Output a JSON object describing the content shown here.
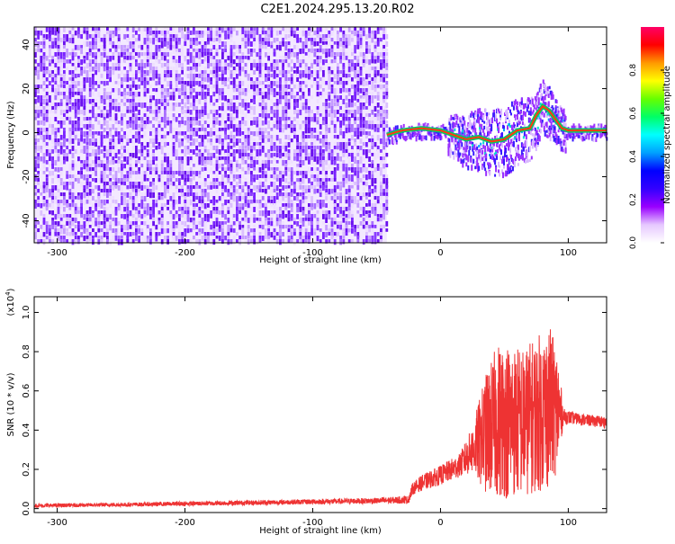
{
  "page_title": "C2E1.2024.295.13.20.R02",
  "chart_data": [
    {
      "type": "heatmap",
      "title": "C2E1.2024.295.13.20.R02",
      "xlabel": "Height of straight line (km)",
      "ylabel": "Frequency (Hz)",
      "xlim": [
        -318,
        130
      ],
      "ylim": [
        -50,
        48
      ],
      "x_ticks": [
        -300,
        -200,
        -100,
        0,
        100
      ],
      "y_ticks": [
        -40,
        -20,
        0,
        20,
        40
      ],
      "x_tick_labels": [
        "-300",
        "-200",
        "-100",
        "0",
        "100"
      ],
      "y_tick_labels": [
        "-40",
        "-20",
        "0",
        "20",
        "40"
      ],
      "noise_region_x": [
        -318,
        -42
      ],
      "ridge": {
        "x": [
          -42,
          -30,
          -15,
          0,
          10,
          20,
          30,
          40,
          50,
          60,
          70,
          75,
          80,
          85,
          90,
          95,
          100,
          130
        ],
        "y": [
          -1,
          1,
          2,
          1,
          -1,
          -3,
          -2,
          -4,
          -3,
          1,
          2,
          8,
          12,
          10,
          6,
          2,
          1,
          1
        ]
      },
      "colorbar": {
        "label": "Normalized spectral amplitude",
        "range": [
          0.0,
          1.0
        ],
        "ticks": [
          0.0,
          0.2,
          0.4,
          0.6,
          0.8
        ],
        "tick_labels": [
          "0.0",
          "0.2",
          "0.4",
          "0.6",
          "0.8"
        ],
        "colormap": [
          "#ffffff",
          "#e6c8ff",
          "#9900ff",
          "#3300ff",
          "#0000ff",
          "#00a0ff",
          "#00ffff",
          "#00ff66",
          "#66ff00",
          "#ffff00",
          "#ff9900",
          "#ff0000",
          "#ff0066"
        ]
      }
    },
    {
      "type": "line",
      "xlabel": "Height of straight line (km)",
      "ylabel": "SNR (10 * v/v)",
      "scale_label": "(x10",
      "scale_exponent": "4",
      "scale_close": ")",
      "xlim": [
        -318,
        130
      ],
      "ylim": [
        -0.02,
        1.08
      ],
      "x_ticks": [
        -300,
        -200,
        -100,
        0,
        100
      ],
      "y_ticks": [
        0.0,
        0.2,
        0.4,
        0.6,
        0.8,
        1.0
      ],
      "x_tick_labels": [
        "-300",
        "-200",
        "-100",
        "0",
        "100"
      ],
      "y_tick_labels": [
        "0.0",
        "0.2",
        "0.4",
        "0.6",
        "0.8",
        "1.0"
      ],
      "color": "#ee3333",
      "series": [
        {
          "x": [
            -318,
            -250,
            -150,
            -100,
            -50,
            -25,
            -22,
            -15,
            0,
            15,
            25,
            35,
            45,
            55,
            65,
            75,
            85,
            92,
            96,
            105,
            115,
            130
          ],
          "y": [
            0.015,
            0.02,
            0.03,
            0.035,
            0.04,
            0.045,
            0.1,
            0.13,
            0.17,
            0.22,
            0.3,
            0.38,
            0.45,
            0.45,
            0.44,
            0.48,
            0.52,
            0.5,
            0.47,
            0.46,
            0.45,
            0.44
          ],
          "amplitude": [
            0.01,
            0.01,
            0.012,
            0.013,
            0.015,
            0.02,
            0.03,
            0.04,
            0.05,
            0.06,
            0.12,
            0.3,
            0.4,
            0.4,
            0.38,
            0.4,
            0.42,
            0.3,
            0.04,
            0.03,
            0.03,
            0.03
          ]
        }
      ]
    }
  ]
}
